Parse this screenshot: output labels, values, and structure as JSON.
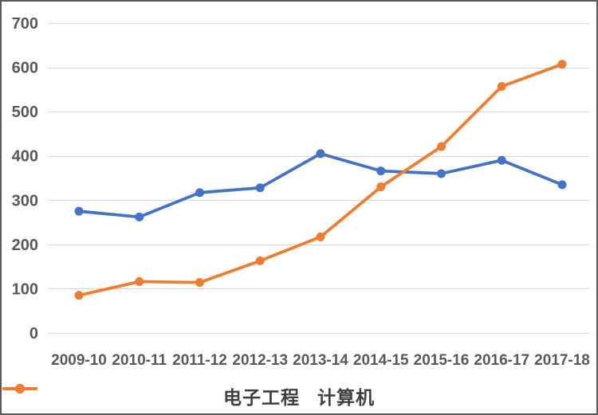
{
  "chart_data": {
    "type": "line",
    "title": "",
    "xlabel": "",
    "ylabel": "",
    "categories": [
      "2009-10",
      "2010-11",
      "2011-12",
      "2012-13",
      "2013-14",
      "2014-15",
      "2015-16",
      "2016-17",
      "2017-18"
    ],
    "series": [
      {
        "name": "电子工程",
        "color": "#4472C4",
        "values": [
          275,
          262,
          317,
          328,
          405,
          366,
          360,
          390,
          335
        ]
      },
      {
        "name": "计算机",
        "color": "#ED7D31",
        "values": [
          85,
          116,
          114,
          163,
          217,
          330,
          421,
          557,
          607
        ]
      }
    ],
    "ylim": [
      0,
      700
    ],
    "yticks": [
      0,
      100,
      200,
      300,
      400,
      500,
      600,
      700
    ],
    "grid": true,
    "legend_position": "bottom"
  },
  "colors": {
    "gridline": "#D9D9D9",
    "tick_label": "#595959",
    "legend_text": "#3f3f3f",
    "frame_border": "#595959",
    "background": "#FFFFFF"
  }
}
